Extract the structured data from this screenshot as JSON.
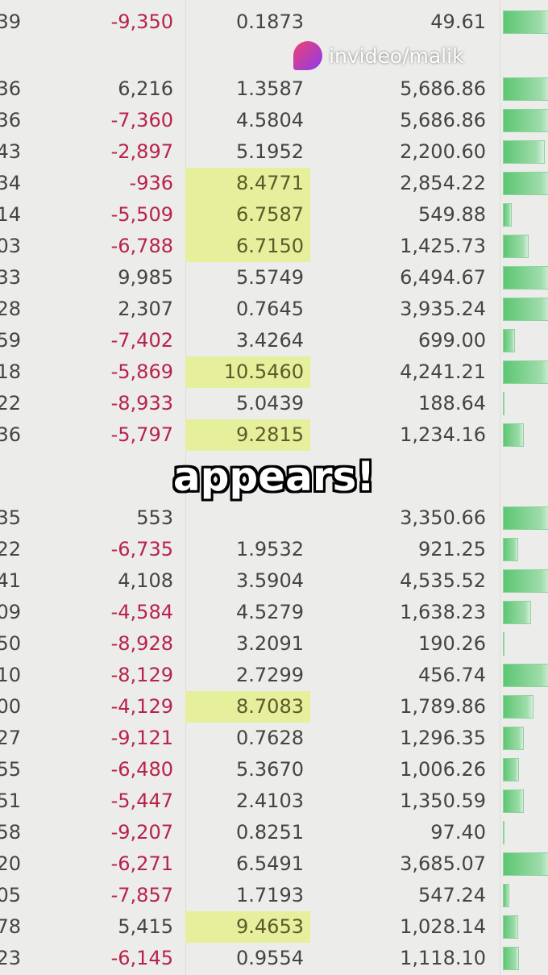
{
  "watermark": {
    "text": "invideo/malik",
    "logo": "invideo-logo"
  },
  "caption": "appears!",
  "colors": {
    "negative": "#b8234a",
    "highlight": "#e6ef9c",
    "databar": "#5cc672"
  },
  "rows": [
    {
      "c0": "39",
      "c1": "-9,350",
      "c2": "0.1873",
      "c3": "49.61",
      "hl": false,
      "bar": 1
    },
    {
      "c0": "36",
      "c1": "6,216",
      "c2": "1.3587",
      "c3": "5,686.86",
      "hl": false,
      "bar": 1
    },
    {
      "c0": "36",
      "c1": "-7,360",
      "c2": "4.5804",
      "c3": "5,686.86",
      "hl": false,
      "bar": 1
    },
    {
      "c0": "43",
      "c1": "-2,897",
      "c2": "5.1952",
      "c3": "2,200.60",
      "hl": false,
      "bar": 0.86
    },
    {
      "c0": "34",
      "c1": "-936",
      "c2": "8.4771",
      "c3": "2,854.22",
      "hl": true,
      "bar": 1
    },
    {
      "c0": "14",
      "c1": "-5,509",
      "c2": "6.7587",
      "c3": "549.88",
      "hl": true,
      "bar": 0.18
    },
    {
      "c0": "03",
      "c1": "-6,788",
      "c2": "6.7150",
      "c3": "1,425.73",
      "hl": true,
      "bar": 0.54
    },
    {
      "c0": "33",
      "c1": "9,985",
      "c2": "5.5749",
      "c3": "6,494.67",
      "hl": false,
      "bar": 1
    },
    {
      "c0": "28",
      "c1": "2,307",
      "c2": "0.7645",
      "c3": "3,935.24",
      "hl": false,
      "bar": 1
    },
    {
      "c0": "59",
      "c1": "-7,402",
      "c2": "3.4264",
      "c3": "699.00",
      "hl": false,
      "bar": 0.25
    },
    {
      "c0": "18",
      "c1": "-5,869",
      "c2": "10.5460",
      "c3": "4,241.21",
      "hl": true,
      "bar": 1
    },
    {
      "c0": "22",
      "c1": "-8,933",
      "c2": "5.0439",
      "c3": "188.64",
      "hl": false,
      "bar": 0.04
    },
    {
      "c0": "36",
      "c1": "-5,797",
      "c2": "9.2815",
      "c3": "1,234.16",
      "hl": true,
      "bar": 0.43
    },
    {
      "c0": "35",
      "c1": "553",
      "c2": "",
      "c3": "3,350.66",
      "hl": false,
      "bar": 1
    },
    {
      "c0": "22",
      "c1": "-6,735",
      "c2": "1.9532",
      "c3": "921.25",
      "hl": false,
      "bar": 0.32
    },
    {
      "c0": "41",
      "c1": "4,108",
      "c2": "3.5904",
      "c3": "4,535.52",
      "hl": false,
      "bar": 1
    },
    {
      "c0": "09",
      "c1": "-4,584",
      "c2": "4.5279",
      "c3": "1,638.23",
      "hl": false,
      "bar": 0.59
    },
    {
      "c0": "50",
      "c1": "-8,928",
      "c2": "3.2091",
      "c3": "190.26",
      "hl": false,
      "bar": 0.02
    },
    {
      "c0": "10",
      "c1": "-8,129",
      "c2": "2.7299",
      "c3": "456.74",
      "hl": false,
      "bar": 1
    },
    {
      "c0": "00",
      "c1": "-4,129",
      "c2": "8.7083",
      "c3": "1,789.86",
      "hl": true,
      "bar": 0.64
    },
    {
      "c0": "27",
      "c1": "-9,121",
      "c2": "0.7628",
      "c3": "1,296.35",
      "hl": false,
      "bar": 0.43
    },
    {
      "c0": "55",
      "c1": "-6,480",
      "c2": "5.3670",
      "c3": "1,006.26",
      "hl": false,
      "bar": 0.34
    },
    {
      "c0": "51",
      "c1": "-5,447",
      "c2": "2.4103",
      "c3": "1,350.59",
      "hl": false,
      "bar": 0.43
    },
    {
      "c0": "58",
      "c1": "-9,207",
      "c2": "0.8251",
      "c3": "97.40",
      "hl": false,
      "bar": 0.02
    },
    {
      "c0": "20",
      "c1": "-6,271",
      "c2": "6.5491",
      "c3": "3,685.07",
      "hl": false,
      "bar": 1
    },
    {
      "c0": "05",
      "c1": "-7,857",
      "c2": "1.7193",
      "c3": "547.24",
      "hl": false,
      "bar": 0.14
    },
    {
      "c0": "78",
      "c1": "5,415",
      "c2": "9.4653",
      "c3": "1,028.14",
      "hl": true,
      "bar": 0.32
    },
    {
      "c0": "23",
      "c1": "-6,145",
      "c2": "0.9554",
      "c3": "1,118.10",
      "hl": false,
      "bar": 0.34
    }
  ]
}
